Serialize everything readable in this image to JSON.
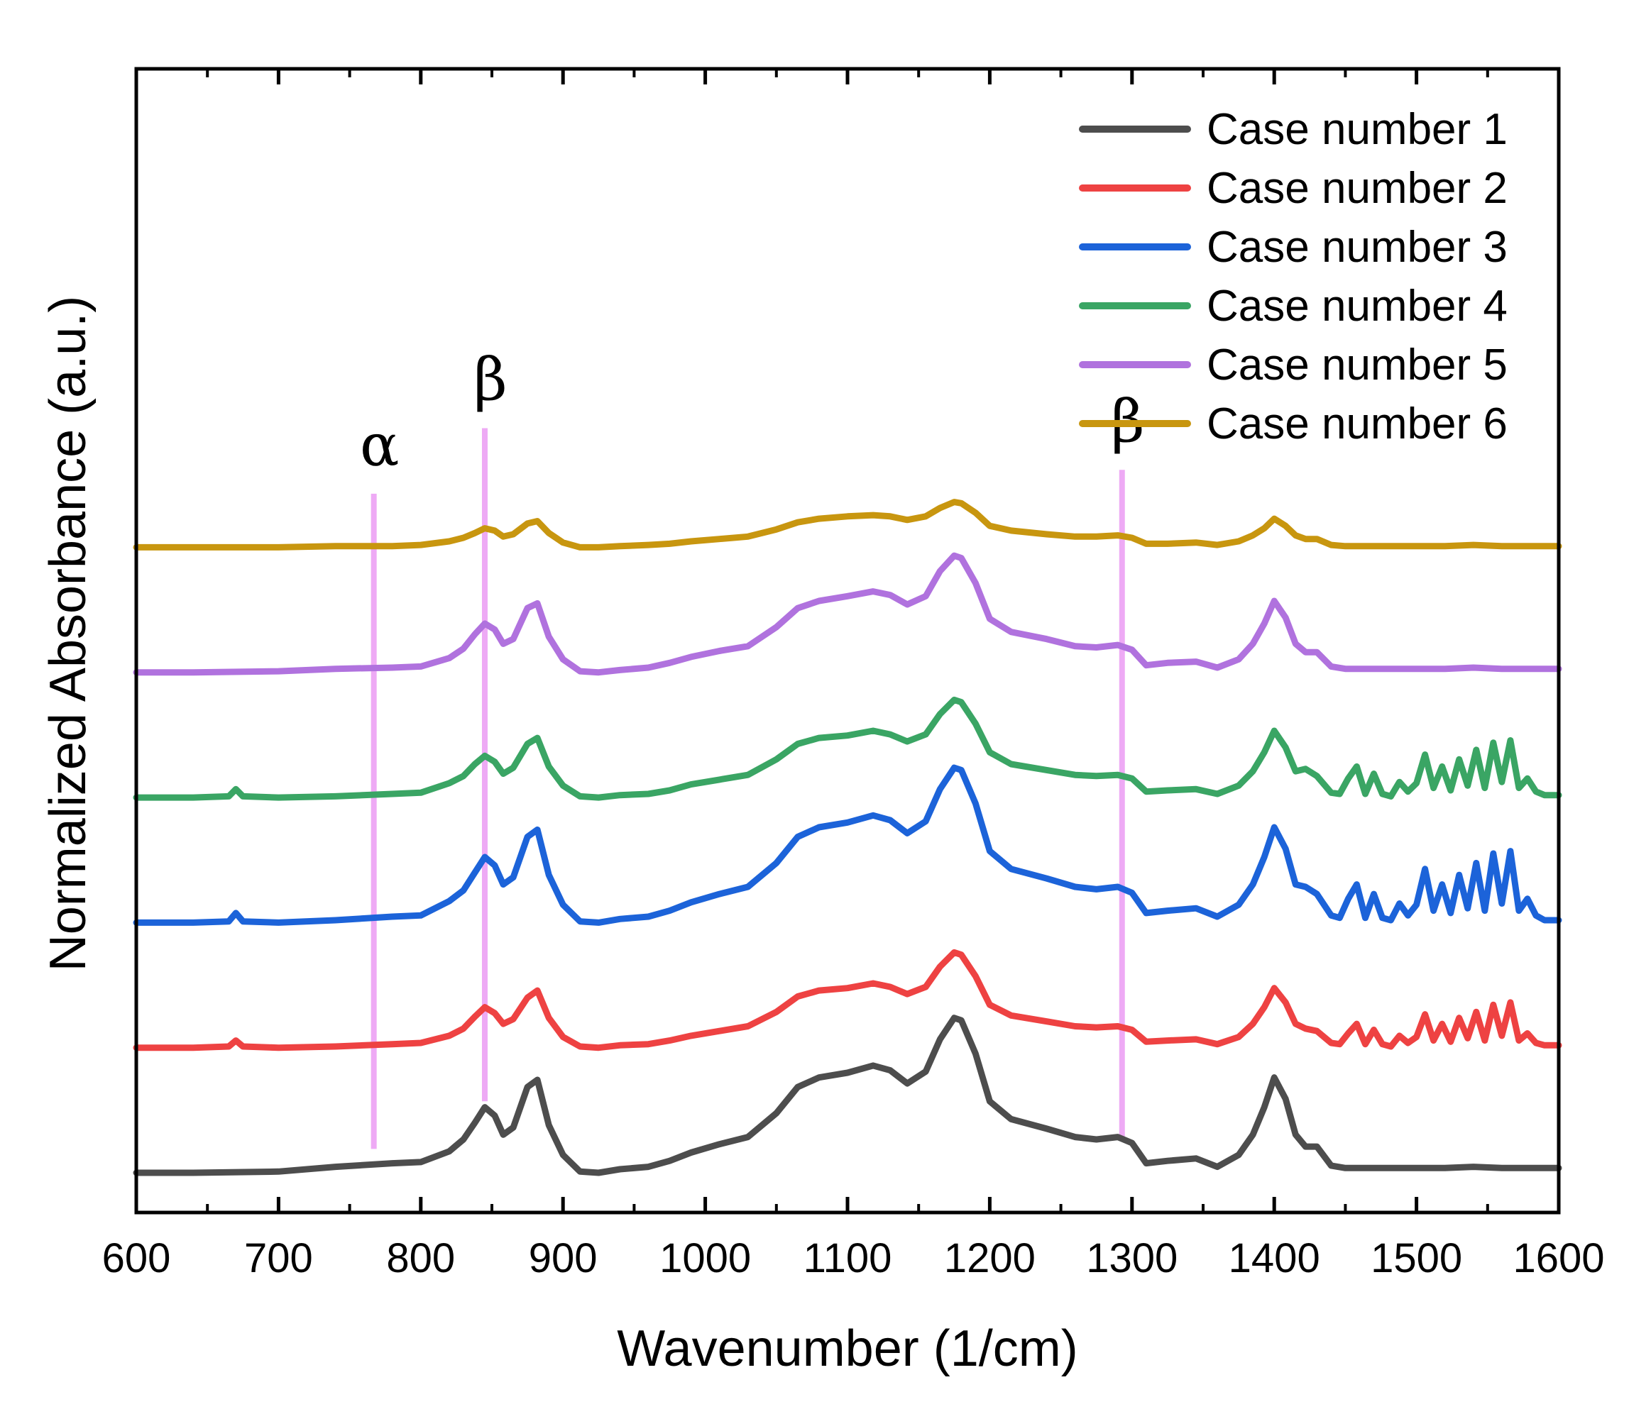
{
  "chart_data": {
    "type": "line",
    "title": "",
    "xlabel": "Wavenumber (1/cm)",
    "ylabel": "Normalized Absorbance (a.u.)",
    "xlim": [
      600,
      1600
    ],
    "ylim": [
      0,
      9.6
    ],
    "xticks": [
      600,
      700,
      800,
      900,
      1000,
      1100,
      1200,
      1300,
      1400,
      1500,
      1600
    ],
    "yticks_shown": false,
    "grid": false,
    "legend_position": "top-right",
    "marker_lines": [
      {
        "x": 767,
        "label": "α",
        "color": "#eeaaf5",
        "y_range": [
          0.2,
          5.7
        ]
      },
      {
        "x": 845,
        "label": "β",
        "color": "#eeaaf5",
        "y_range": [
          0.6,
          6.25
        ]
      },
      {
        "x": 1293,
        "label": "β",
        "color": "#eeaaf5",
        "y_range": [
          0.3,
          5.9
        ]
      }
    ],
    "series": [
      {
        "name": "Case number 1",
        "color": "#4d4d4d",
        "offset": 0.0,
        "x": [
          600,
          640,
          700,
          740,
          780,
          800,
          820,
          830,
          838,
          845,
          852,
          858,
          865,
          875,
          882,
          890,
          900,
          912,
          925,
          940,
          960,
          975,
          990,
          1010,
          1030,
          1050,
          1065,
          1080,
          1100,
          1118,
          1130,
          1142,
          1155,
          1165,
          1175,
          1180,
          1190,
          1200,
          1215,
          1240,
          1260,
          1275,
          1290,
          1300,
          1310,
          1325,
          1345,
          1360,
          1375,
          1385,
          1393,
          1400,
          1408,
          1415,
          1422,
          1430,
          1440,
          1450,
          1480,
          1520,
          1540,
          1560,
          1600
        ],
        "y": [
          0.0,
          0.0,
          0.01,
          0.05,
          0.08,
          0.09,
          0.18,
          0.28,
          0.42,
          0.55,
          0.48,
          0.32,
          0.38,
          0.72,
          0.78,
          0.4,
          0.15,
          0.01,
          0.0,
          0.03,
          0.05,
          0.1,
          0.17,
          0.24,
          0.3,
          0.5,
          0.72,
          0.8,
          0.84,
          0.9,
          0.86,
          0.75,
          0.85,
          1.12,
          1.3,
          1.28,
          1.0,
          0.6,
          0.45,
          0.37,
          0.3,
          0.28,
          0.3,
          0.25,
          0.08,
          0.1,
          0.12,
          0.05,
          0.15,
          0.32,
          0.55,
          0.8,
          0.62,
          0.32,
          0.22,
          0.22,
          0.06,
          0.04,
          0.04,
          0.04,
          0.05,
          0.04,
          0.04
        ]
      },
      {
        "name": "Case number 2",
        "color": "#ee4242",
        "offset": 1.05,
        "x": [
          600,
          640,
          665,
          670,
          675,
          700,
          740,
          780,
          800,
          820,
          830,
          838,
          845,
          852,
          858,
          865,
          875,
          882,
          890,
          900,
          912,
          925,
          940,
          960,
          975,
          990,
          1010,
          1030,
          1050,
          1065,
          1080,
          1100,
          1118,
          1130,
          1142,
          1155,
          1165,
          1175,
          1180,
          1190,
          1200,
          1215,
          1240,
          1260,
          1275,
          1290,
          1300,
          1310,
          1325,
          1345,
          1360,
          1375,
          1385,
          1393,
          1400,
          1408,
          1415,
          1422,
          1430,
          1440,
          1446,
          1452,
          1458,
          1464,
          1470,
          1476,
          1482,
          1488,
          1494,
          1500,
          1506,
          1512,
          1518,
          1524,
          1530,
          1536,
          1542,
          1548,
          1554,
          1560,
          1566,
          1572,
          1578,
          1584,
          1590,
          1600
        ],
        "y": [
          0.0,
          0.0,
          0.01,
          0.06,
          0.01,
          0.0,
          0.01,
          0.03,
          0.04,
          0.1,
          0.16,
          0.26,
          0.34,
          0.29,
          0.2,
          0.24,
          0.42,
          0.48,
          0.25,
          0.09,
          0.01,
          0.0,
          0.02,
          0.03,
          0.06,
          0.1,
          0.14,
          0.18,
          0.3,
          0.43,
          0.48,
          0.5,
          0.54,
          0.51,
          0.45,
          0.51,
          0.68,
          0.8,
          0.78,
          0.6,
          0.36,
          0.27,
          0.22,
          0.18,
          0.17,
          0.18,
          0.15,
          0.05,
          0.06,
          0.07,
          0.03,
          0.09,
          0.2,
          0.34,
          0.5,
          0.38,
          0.2,
          0.16,
          0.14,
          0.04,
          0.03,
          0.12,
          0.2,
          0.03,
          0.15,
          0.03,
          0.01,
          0.1,
          0.04,
          0.09,
          0.28,
          0.06,
          0.2,
          0.05,
          0.25,
          0.08,
          0.3,
          0.06,
          0.36,
          0.1,
          0.38,
          0.06,
          0.12,
          0.04,
          0.02,
          0.02
        ]
      },
      {
        "name": "Case number 3",
        "color": "#1c63d9",
        "offset": 2.1,
        "x": [
          600,
          640,
          665,
          670,
          675,
          700,
          740,
          780,
          800,
          820,
          830,
          838,
          845,
          852,
          858,
          865,
          875,
          882,
          890,
          900,
          912,
          925,
          940,
          960,
          975,
          990,
          1010,
          1030,
          1050,
          1065,
          1080,
          1100,
          1118,
          1130,
          1142,
          1155,
          1165,
          1175,
          1180,
          1190,
          1200,
          1215,
          1240,
          1260,
          1275,
          1290,
          1300,
          1310,
          1325,
          1345,
          1360,
          1375,
          1385,
          1393,
          1400,
          1408,
          1415,
          1422,
          1430,
          1440,
          1446,
          1452,
          1458,
          1464,
          1470,
          1476,
          1482,
          1488,
          1494,
          1500,
          1506,
          1512,
          1518,
          1524,
          1530,
          1536,
          1542,
          1548,
          1554,
          1560,
          1566,
          1572,
          1578,
          1584,
          1590,
          1600
        ],
        "y": [
          0.0,
          0.0,
          0.01,
          0.08,
          0.01,
          0.0,
          0.02,
          0.05,
          0.06,
          0.18,
          0.27,
          0.42,
          0.55,
          0.48,
          0.32,
          0.38,
          0.72,
          0.78,
          0.4,
          0.15,
          0.01,
          0.0,
          0.03,
          0.05,
          0.1,
          0.17,
          0.24,
          0.3,
          0.5,
          0.72,
          0.8,
          0.84,
          0.9,
          0.86,
          0.75,
          0.85,
          1.12,
          1.3,
          1.28,
          1.0,
          0.6,
          0.45,
          0.37,
          0.3,
          0.28,
          0.3,
          0.25,
          0.08,
          0.1,
          0.12,
          0.05,
          0.15,
          0.32,
          0.55,
          0.8,
          0.62,
          0.32,
          0.3,
          0.24,
          0.06,
          0.04,
          0.2,
          0.32,
          0.04,
          0.24,
          0.04,
          0.02,
          0.16,
          0.06,
          0.15,
          0.45,
          0.1,
          0.32,
          0.08,
          0.4,
          0.12,
          0.5,
          0.1,
          0.58,
          0.16,
          0.6,
          0.1,
          0.2,
          0.06,
          0.02,
          0.02
        ]
      },
      {
        "name": "Case number 4",
        "color": "#3aa564",
        "offset": 3.15,
        "x": [
          600,
          640,
          665,
          670,
          675,
          700,
          740,
          780,
          800,
          820,
          830,
          838,
          845,
          852,
          858,
          865,
          875,
          882,
          890,
          900,
          912,
          925,
          940,
          960,
          975,
          990,
          1010,
          1030,
          1050,
          1065,
          1080,
          1100,
          1118,
          1130,
          1142,
          1155,
          1165,
          1175,
          1180,
          1190,
          1200,
          1215,
          1240,
          1260,
          1275,
          1290,
          1300,
          1310,
          1325,
          1345,
          1360,
          1375,
          1385,
          1393,
          1400,
          1408,
          1415,
          1422,
          1430,
          1440,
          1446,
          1452,
          1458,
          1464,
          1470,
          1476,
          1482,
          1488,
          1494,
          1500,
          1506,
          1512,
          1518,
          1524,
          1530,
          1536,
          1542,
          1548,
          1554,
          1560,
          1566,
          1572,
          1578,
          1584,
          1590,
          1600
        ],
        "y": [
          0.0,
          0.0,
          0.01,
          0.07,
          0.01,
          0.0,
          0.01,
          0.03,
          0.04,
          0.12,
          0.18,
          0.28,
          0.35,
          0.3,
          0.2,
          0.25,
          0.45,
          0.5,
          0.26,
          0.1,
          0.01,
          0.0,
          0.02,
          0.03,
          0.06,
          0.11,
          0.15,
          0.19,
          0.32,
          0.45,
          0.5,
          0.52,
          0.56,
          0.53,
          0.47,
          0.53,
          0.7,
          0.82,
          0.8,
          0.62,
          0.38,
          0.28,
          0.23,
          0.19,
          0.18,
          0.19,
          0.16,
          0.05,
          0.06,
          0.07,
          0.03,
          0.1,
          0.22,
          0.38,
          0.56,
          0.42,
          0.22,
          0.24,
          0.18,
          0.04,
          0.03,
          0.16,
          0.26,
          0.03,
          0.2,
          0.03,
          0.01,
          0.13,
          0.05,
          0.12,
          0.36,
          0.08,
          0.26,
          0.06,
          0.32,
          0.1,
          0.4,
          0.08,
          0.46,
          0.13,
          0.48,
          0.08,
          0.16,
          0.05,
          0.02,
          0.02
        ]
      },
      {
        "name": "Case number 5",
        "color": "#b072de",
        "offset": 4.2,
        "x": [
          600,
          640,
          700,
          740,
          780,
          800,
          820,
          830,
          838,
          845,
          852,
          858,
          865,
          875,
          882,
          890,
          900,
          912,
          925,
          940,
          960,
          975,
          990,
          1010,
          1030,
          1050,
          1065,
          1080,
          1100,
          1118,
          1130,
          1142,
          1155,
          1165,
          1175,
          1180,
          1190,
          1200,
          1215,
          1240,
          1260,
          1275,
          1290,
          1300,
          1310,
          1325,
          1345,
          1360,
          1375,
          1385,
          1393,
          1400,
          1408,
          1415,
          1422,
          1430,
          1440,
          1450,
          1480,
          1520,
          1540,
          1560,
          1600
        ],
        "y": [
          0.0,
          0.0,
          0.01,
          0.03,
          0.04,
          0.05,
          0.12,
          0.2,
          0.32,
          0.41,
          0.36,
          0.24,
          0.28,
          0.54,
          0.58,
          0.3,
          0.11,
          0.01,
          0.0,
          0.02,
          0.04,
          0.08,
          0.13,
          0.18,
          0.22,
          0.38,
          0.54,
          0.6,
          0.64,
          0.68,
          0.65,
          0.57,
          0.64,
          0.85,
          0.98,
          0.96,
          0.75,
          0.45,
          0.34,
          0.28,
          0.22,
          0.21,
          0.23,
          0.19,
          0.06,
          0.08,
          0.09,
          0.04,
          0.11,
          0.24,
          0.41,
          0.6,
          0.46,
          0.24,
          0.17,
          0.17,
          0.05,
          0.03,
          0.03,
          0.03,
          0.04,
          0.03,
          0.03
        ]
      },
      {
        "name": "Case number 6",
        "color": "#c8960f",
        "offset": 5.25,
        "x": [
          600,
          640,
          700,
          740,
          780,
          800,
          820,
          830,
          838,
          845,
          852,
          858,
          865,
          875,
          882,
          890,
          900,
          912,
          925,
          940,
          960,
          975,
          990,
          1010,
          1030,
          1050,
          1065,
          1080,
          1100,
          1118,
          1130,
          1142,
          1155,
          1165,
          1175,
          1180,
          1190,
          1200,
          1215,
          1240,
          1260,
          1275,
          1290,
          1300,
          1310,
          1325,
          1345,
          1360,
          1375,
          1385,
          1393,
          1400,
          1408,
          1415,
          1422,
          1430,
          1440,
          1450,
          1480,
          1520,
          1540,
          1560,
          1600
        ],
        "y": [
          0.0,
          0.0,
          0.0,
          0.01,
          0.01,
          0.02,
          0.05,
          0.08,
          0.12,
          0.16,
          0.14,
          0.09,
          0.11,
          0.2,
          0.22,
          0.12,
          0.04,
          0.0,
          0.0,
          0.01,
          0.02,
          0.03,
          0.05,
          0.07,
          0.09,
          0.15,
          0.21,
          0.24,
          0.26,
          0.27,
          0.26,
          0.23,
          0.26,
          0.33,
          0.38,
          0.37,
          0.29,
          0.18,
          0.14,
          0.11,
          0.09,
          0.09,
          0.1,
          0.08,
          0.03,
          0.03,
          0.04,
          0.02,
          0.05,
          0.1,
          0.16,
          0.24,
          0.18,
          0.1,
          0.07,
          0.07,
          0.02,
          0.01,
          0.01,
          0.01,
          0.02,
          0.01,
          0.01
        ]
      }
    ]
  }
}
